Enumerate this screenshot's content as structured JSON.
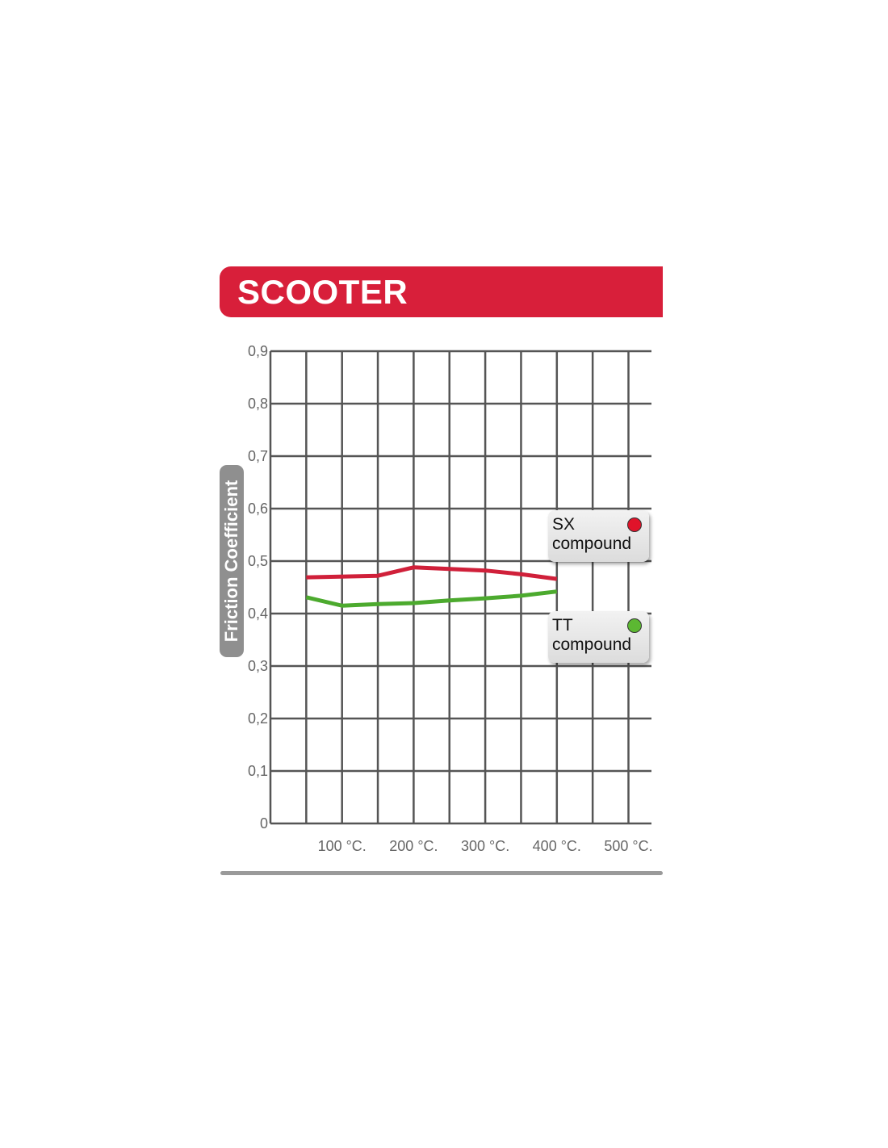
{
  "banner": {
    "title": "SCOOTER",
    "color": "#d81f3a"
  },
  "chart_data": {
    "type": "line",
    "title": "SCOOTER",
    "ylabel": "Friction Coefficient",
    "xlabel": "",
    "xlim": [
      0,
      530
    ],
    "ylim": [
      0,
      0.9
    ],
    "grid": true,
    "x_ticks": [
      {
        "value": 100,
        "label": "100 °C."
      },
      {
        "value": 200,
        "label": "200 °C."
      },
      {
        "value": 300,
        "label": "300 °C."
      },
      {
        "value": 400,
        "label": "400 °C."
      },
      {
        "value": 500,
        "label": "500 °C."
      }
    ],
    "y_ticks": [
      {
        "value": 0,
        "label": "0"
      },
      {
        "value": 0.1,
        "label": "0,1"
      },
      {
        "value": 0.2,
        "label": "0,2"
      },
      {
        "value": 0.3,
        "label": "0,3"
      },
      {
        "value": 0.4,
        "label": "0,4"
      },
      {
        "value": 0.5,
        "label": "0,5"
      },
      {
        "value": 0.6,
        "label": "0,6"
      },
      {
        "value": 0.7,
        "label": "0,7"
      },
      {
        "value": 0.8,
        "label": "0,8"
      },
      {
        "value": 0.9,
        "label": "0,9"
      }
    ],
    "legend_placement": "right",
    "series": [
      {
        "name": "SX compound",
        "color": "#d0203a",
        "x": [
          50,
          150,
          200,
          250,
          300,
          350,
          400
        ],
        "y": [
          0.469,
          0.472,
          0.488,
          0.485,
          0.482,
          0.475,
          0.466
        ]
      },
      {
        "name": "TT compound",
        "color": "#4caa2e",
        "x": [
          50,
          100,
          150,
          200,
          250,
          300,
          350,
          400
        ],
        "y": [
          0.431,
          0.415,
          0.418,
          0.42,
          0.425,
          0.429,
          0.434,
          0.442
        ]
      }
    ]
  },
  "legend": [
    {
      "line1": "SX",
      "line2": "compound",
      "dot_color": "#e0132a"
    },
    {
      "line1": "TT",
      "line2": "compound",
      "dot_color": "#5cb832"
    }
  ]
}
